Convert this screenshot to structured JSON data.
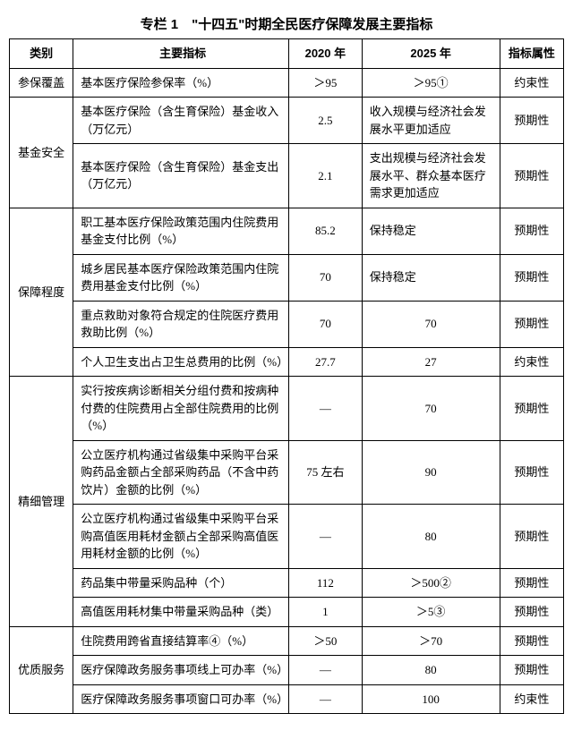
{
  "title": "专栏 1　\"十四五\"时期全民医疗保障发展主要指标",
  "headers": {
    "category": "类别",
    "indicator": "主要指标",
    "y2020": "2020 年",
    "y2025": "2025 年",
    "attr": "指标属性"
  },
  "groups": [
    {
      "category": "参保覆盖",
      "rows": [
        {
          "indicator": "基本医疗保险参保率（%）",
          "y2020": "＞95",
          "y2025": "＞95①",
          "y2025_align": "c",
          "attr": "约束性"
        }
      ]
    },
    {
      "category": "基金安全",
      "rows": [
        {
          "indicator": "基本医疗保险（含生育保险）基金收入（万亿元）",
          "y2020": "2.5",
          "y2025": "收入规模与经济社会发展水平更加适应",
          "y2025_align": "l",
          "attr": "预期性"
        },
        {
          "indicator": "基本医疗保险（含生育保险）基金支出（万亿元）",
          "y2020": "2.1",
          "y2025": "支出规模与经济社会发展水平、群众基本医疗需求更加适应",
          "y2025_align": "l",
          "attr": "预期性"
        }
      ]
    },
    {
      "category": "保障程度",
      "rows": [
        {
          "indicator": "职工基本医疗保险政策范围内住院费用基金支付比例（%）",
          "y2020": "85.2",
          "y2025": "保持稳定",
          "y2025_align": "l",
          "attr": "预期性"
        },
        {
          "indicator": "城乡居民基本医疗保险政策范围内住院费用基金支付比例（%）",
          "y2020": "70",
          "y2025": "保持稳定",
          "y2025_align": "l",
          "attr": "预期性"
        },
        {
          "indicator": "重点救助对象符合规定的住院医疗费用救助比例（%）",
          "y2020": "70",
          "y2025": "70",
          "y2025_align": "c",
          "attr": "预期性"
        },
        {
          "indicator": "个人卫生支出占卫生总费用的比例（%）",
          "y2020": "27.7",
          "y2025": "27",
          "y2025_align": "c",
          "attr": "约束性"
        }
      ]
    },
    {
      "category": "精细管理",
      "rows": [
        {
          "indicator": "实行按疾病诊断相关分组付费和按病种付费的住院费用占全部住院费用的比例（%）",
          "y2020": "—",
          "y2025": "70",
          "y2025_align": "c",
          "attr": "预期性"
        },
        {
          "indicator": "公立医疗机构通过省级集中采购平台采购药品金额占全部采购药品（不含中药饮片）金额的比例（%）",
          "y2020": "75 左右",
          "y2025": "90",
          "y2025_align": "c",
          "attr": "预期性"
        },
        {
          "indicator": "公立医疗机构通过省级集中采购平台采购高值医用耗材金额占全部采购高值医用耗材金额的比例（%）",
          "y2020": "—",
          "y2025": "80",
          "y2025_align": "c",
          "attr": "预期性"
        },
        {
          "indicator": "药品集中带量采购品种（个）",
          "y2020": "112",
          "y2025": "＞500②",
          "y2025_align": "c",
          "attr": "预期性"
        },
        {
          "indicator": "高值医用耗材集中带量采购品种（类）",
          "y2020": "1",
          "y2025": "＞5③",
          "y2025_align": "c",
          "attr": "预期性"
        }
      ]
    },
    {
      "category": "优质服务",
      "rows": [
        {
          "indicator": "住院费用跨省直接结算率④（%）",
          "y2020": "＞50",
          "y2025": "＞70",
          "y2025_align": "c",
          "attr": "预期性"
        },
        {
          "indicator": "医疗保障政务服务事项线上可办率（%）",
          "y2020": "—",
          "y2025": "80",
          "y2025_align": "c",
          "attr": "预期性"
        },
        {
          "indicator": "医疗保障政务服务事项窗口可办率（%）",
          "y2020": "—",
          "y2025": "100",
          "y2025_align": "c",
          "attr": "约束性"
        }
      ]
    }
  ]
}
